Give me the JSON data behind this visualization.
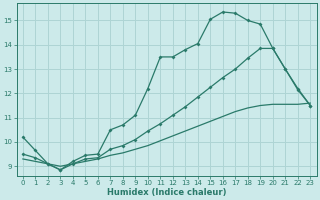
{
  "xlabel": "Humidex (Indice chaleur)",
  "background_color": "#cceaea",
  "grid_color": "#aed4d4",
  "line_color": "#2a7a6a",
  "xlim": [
    -0.5,
    23.5
  ],
  "ylim": [
    8.6,
    15.7
  ],
  "yticks": [
    9,
    10,
    11,
    12,
    13,
    14,
    15
  ],
  "xticks": [
    0,
    1,
    2,
    3,
    4,
    5,
    6,
    7,
    8,
    9,
    10,
    11,
    12,
    13,
    14,
    15,
    16,
    17,
    18,
    19,
    20,
    21,
    22,
    23
  ],
  "line1_x": [
    0,
    1,
    2,
    3,
    4,
    5,
    6,
    7,
    8,
    9,
    10,
    11,
    12,
    13,
    14,
    15,
    16,
    17,
    18,
    19,
    20,
    21,
    22,
    23
  ],
  "line1_y": [
    10.2,
    9.65,
    9.1,
    8.85,
    9.2,
    9.45,
    9.5,
    10.5,
    10.7,
    11.1,
    12.2,
    13.5,
    13.5,
    13.8,
    14.05,
    15.05,
    15.35,
    15.3,
    15.0,
    14.85,
    13.85,
    13.0,
    12.2,
    11.5
  ],
  "line2_x": [
    0,
    1,
    2,
    3,
    4,
    5,
    6,
    7,
    8,
    9,
    10,
    11,
    12,
    13,
    14,
    15,
    16,
    17,
    18,
    19,
    20,
    21,
    22,
    23
  ],
  "line2_y": [
    9.5,
    9.35,
    9.1,
    8.85,
    9.1,
    9.3,
    9.35,
    9.7,
    9.85,
    10.1,
    10.45,
    10.75,
    11.1,
    11.45,
    11.85,
    12.25,
    12.65,
    13.0,
    13.45,
    13.85,
    13.85,
    13.0,
    12.15,
    11.5
  ],
  "line3_x": [
    0,
    1,
    2,
    3,
    4,
    5,
    6,
    7,
    8,
    9,
    10,
    11,
    12,
    13,
    14,
    15,
    16,
    17,
    18,
    19,
    20,
    21,
    22,
    23
  ],
  "line3_y": [
    9.3,
    9.2,
    9.1,
    9.0,
    9.1,
    9.2,
    9.3,
    9.45,
    9.55,
    9.7,
    9.85,
    10.05,
    10.25,
    10.45,
    10.65,
    10.85,
    11.05,
    11.25,
    11.4,
    11.5,
    11.55,
    11.55,
    11.55,
    11.6
  ]
}
